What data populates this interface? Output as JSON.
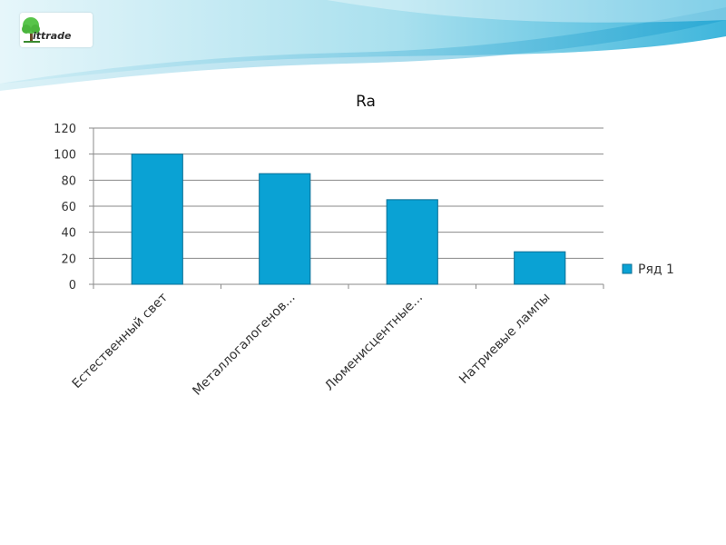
{
  "brand": {
    "logo_text": "ittrade"
  },
  "colors": {
    "bar": "#0aa2d4",
    "bar_edge": "#0b6f95",
    "grid": "#8a8a8a",
    "text": "#333333",
    "header_light": "#bfe6f0",
    "header_mid": "#5cc6e3"
  },
  "chart_data": {
    "type": "bar",
    "title": "Ra",
    "categories": [
      "Естественный свет",
      "Металлогалогенов...",
      "Люменисцентные...",
      "Натриевые лампы"
    ],
    "series": [
      {
        "name": "Ряд 1",
        "values": [
          100,
          85,
          65,
          25
        ]
      }
    ],
    "ylim": [
      0,
      120
    ],
    "yticks": [
      0,
      20,
      40,
      60,
      80,
      100,
      120
    ],
    "ytick_labels": [
      "0",
      "20",
      "40",
      "60",
      "80",
      "100",
      "120"
    ],
    "grid": true,
    "legend": "right"
  }
}
